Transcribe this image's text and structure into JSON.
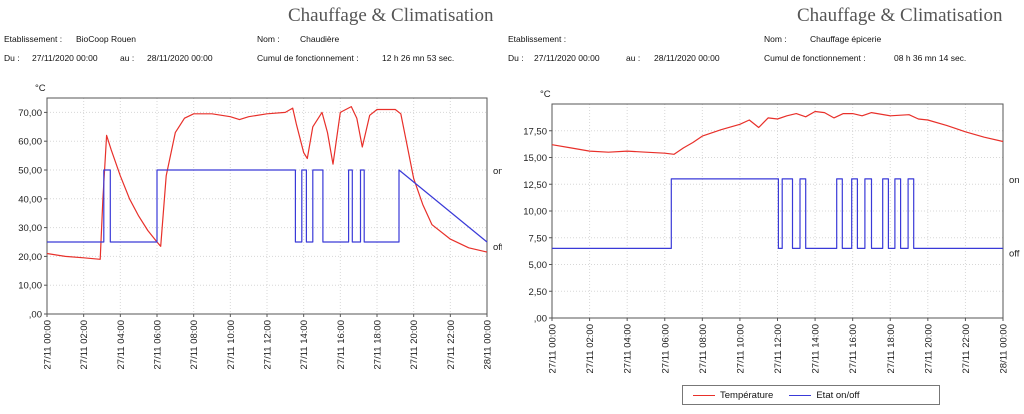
{
  "panels": [
    {
      "title": "Chauffage & Climatisation",
      "info": {
        "etab_label": "Etablissement :",
        "etab_value": "BioCoop Rouen",
        "nom_label": "Nom :",
        "nom_value": "Chaudière",
        "du_label": "Du :",
        "du_value": "27/11/2020 00:00",
        "au_label": "au :",
        "au_value": "28/11/2020 00:00",
        "cumul_label": "Cumul de fonctionnement :",
        "cumul_value": "12 h 26 mn 53 sec."
      }
    },
    {
      "title": "Chauffage & Climatisation",
      "info": {
        "etab_label": "Etablissement :",
        "etab_value": "",
        "nom_label": "Nom :",
        "nom_value": "Chauffage épicerie",
        "du_label": "Du :",
        "du_value": "27/11/2020 00:00",
        "au_label": "au :",
        "au_value": "28/11/2020 00:00",
        "cumul_label": "Cumul de fonctionnement :",
        "cumul_value": "08 h 36 mn 14 sec."
      }
    }
  ],
  "legend": {
    "temp_label": "Température",
    "etat_label": "Etat on/off"
  },
  "colors": {
    "temperature": "#e8302a",
    "etat": "#3a3ad8",
    "grid": "#d7d7d7",
    "axis": "#555555"
  },
  "chart_data": [
    {
      "type": "line",
      "ylabel": "°C",
      "ylim": [
        0,
        75
      ],
      "y_ticks": [
        0,
        10,
        20,
        30,
        40,
        50,
        60,
        70
      ],
      "y_tick_labels": [
        ",00",
        "10,00",
        "20,00",
        "30,00",
        "40,00",
        "50,00",
        "60,00",
        "70,00"
      ],
      "xlim": [
        0,
        24
      ],
      "x_ticks": [
        0,
        2,
        4,
        6,
        8,
        10,
        12,
        14,
        16,
        18,
        20,
        22,
        24
      ],
      "x_tick_labels": [
        "27/11 00:00",
        "27/11 02:00",
        "27/11 04:00",
        "27/11 06:00",
        "27/11 08:00",
        "27/11 10:00",
        "27/11 12:00",
        "27/11 14:00",
        "27/11 16:00",
        "27/11 18:00",
        "27/11 20:00",
        "27/11 22:00",
        "28/11 00:00"
      ],
      "grid": true,
      "state_labels": {
        "on": "on",
        "off": "off"
      },
      "series": [
        {
          "name": "Température",
          "role": "temperature",
          "x": [
            0,
            1,
            2,
            2.9,
            3.05,
            3.25,
            3.5,
            4,
            4.5,
            5,
            5.5,
            6,
            6.2,
            6.5,
            7,
            7.5,
            8,
            9,
            10,
            10.5,
            11,
            12,
            13,
            13.4,
            13.6,
            14,
            14.2,
            14.5,
            15,
            15.3,
            15.6,
            16,
            16.6,
            16.9,
            17.2,
            17.6,
            18,
            19,
            19.3,
            19.6,
            20,
            20.5,
            21,
            22,
            23,
            24
          ],
          "values": [
            21,
            20,
            19.5,
            19,
            40,
            62,
            57,
            48,
            40,
            34,
            29,
            25,
            23.5,
            48,
            63,
            68,
            69.5,
            69.5,
            68.5,
            67.5,
            68.5,
            69.5,
            70,
            71.5,
            66,
            56,
            54,
            65,
            70,
            63,
            52,
            70,
            72,
            68,
            58,
            69,
            71,
            71,
            69.5,
            60,
            47,
            38,
            31,
            26,
            23,
            21.5
          ]
        },
        {
          "name": "Etat on/off",
          "role": "state",
          "on_value": 50,
          "off_value": 25,
          "x": [
            0,
            3.1,
            3.1,
            3.45,
            3.45,
            6.0,
            6.0,
            13.55,
            13.55,
            13.9,
            13.9,
            14.15,
            14.15,
            14.5,
            14.5,
            15.05,
            15.05,
            16.45,
            16.45,
            16.65,
            16.65,
            17.1,
            17.1,
            17.3,
            17.3,
            19.2,
            19.2,
            24
          ],
          "values": [
            25,
            25,
            50,
            50,
            25,
            25,
            50,
            50,
            25,
            25,
            50,
            50,
            25,
            25,
            50,
            50,
            25,
            25,
            50,
            50,
            25,
            25,
            50,
            50,
            25,
            25,
            50,
            25
          ]
        }
      ]
    },
    {
      "type": "line",
      "ylabel": "°C",
      "ylim": [
        0,
        20
      ],
      "y_ticks": [
        0,
        2.5,
        5,
        7.5,
        10,
        12.5,
        15,
        17.5
      ],
      "y_tick_labels": [
        ",00",
        "2,50",
        "5,00",
        "7,50",
        "10,00",
        "12,50",
        "15,00",
        "17,50"
      ],
      "xlim": [
        0,
        24
      ],
      "x_ticks": [
        0,
        2,
        4,
        6,
        8,
        10,
        12,
        14,
        16,
        18,
        20,
        22,
        24
      ],
      "x_tick_labels": [
        "27/11 00:00",
        "27/11 02:00",
        "27/11 04:00",
        "27/11 06:00",
        "27/11 08:00",
        "27/11 10:00",
        "27/11 12:00",
        "27/11 14:00",
        "27/11 16:00",
        "27/11 18:00",
        "27/11 20:00",
        "27/11 22:00",
        "28/11 00:00"
      ],
      "grid": true,
      "state_labels": {
        "on": "on",
        "off": "off"
      },
      "series": [
        {
          "name": "Température",
          "role": "temperature",
          "x": [
            0,
            1,
            2,
            3,
            4,
            5,
            6,
            6.5,
            7,
            7.5,
            8,
            9,
            10,
            10.5,
            11,
            11.5,
            12,
            12.5,
            13,
            13.5,
            14,
            14.5,
            15,
            15.5,
            16,
            16.5,
            17,
            18,
            19,
            19.5,
            20,
            21,
            22,
            23,
            24
          ],
          "values": [
            16.2,
            15.9,
            15.6,
            15.5,
            15.6,
            15.5,
            15.4,
            15.3,
            15.9,
            16.4,
            17,
            17.6,
            18.1,
            18.5,
            17.8,
            18.7,
            18.6,
            18.9,
            19.1,
            18.8,
            19.3,
            19.2,
            18.7,
            19.1,
            19.1,
            18.9,
            19.2,
            18.9,
            19,
            18.6,
            18.5,
            18,
            17.4,
            16.9,
            16.5
          ]
        },
        {
          "name": "Etat on/off",
          "role": "state",
          "on_value": 13,
          "off_value": 6.5,
          "x": [
            0,
            6.35,
            6.35,
            12.05,
            12.05,
            12.25,
            12.25,
            12.8,
            12.8,
            13.2,
            13.2,
            13.5,
            13.5,
            15.15,
            15.15,
            15.45,
            15.45,
            15.95,
            15.95,
            16.25,
            16.25,
            16.65,
            16.65,
            17.0,
            17.0,
            17.6,
            17.6,
            17.9,
            17.9,
            18.25,
            18.25,
            18.55,
            18.55,
            18.95,
            18.95,
            19.25,
            19.25,
            24
          ],
          "values": [
            6.5,
            6.5,
            13,
            13,
            6.5,
            6.5,
            13,
            13,
            6.5,
            6.5,
            13,
            13,
            6.5,
            6.5,
            13,
            13,
            6.5,
            6.5,
            13,
            13,
            6.5,
            6.5,
            13,
            13,
            6.5,
            6.5,
            13,
            13,
            6.5,
            6.5,
            13,
            13,
            6.5,
            6.5,
            13,
            13,
            6.5,
            6.5
          ]
        }
      ]
    }
  ]
}
